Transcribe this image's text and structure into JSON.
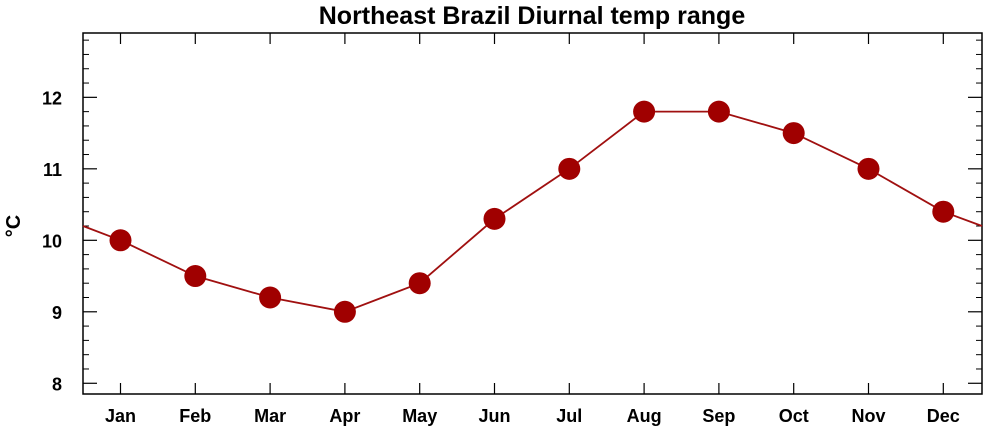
{
  "chart_data": {
    "type": "line",
    "title": "Northeast Brazil Diurnal temp range",
    "xlabel": "",
    "ylabel": "°C",
    "categories": [
      "Jan",
      "Feb",
      "Mar",
      "Apr",
      "May",
      "Jun",
      "Jul",
      "Aug",
      "Sep",
      "Oct",
      "Nov",
      "Dec"
    ],
    "series": [
      {
        "values": [
          10.0,
          9.5,
          9.2,
          9.0,
          9.4,
          10.3,
          11.0,
          11.8,
          11.8,
          11.5,
          11.0,
          10.4
        ]
      }
    ],
    "line_edge_values": {
      "left": 10.2,
      "right": 10.2
    },
    "ylim": [
      7.85,
      12.9
    ],
    "yticks": [
      8,
      9,
      10,
      11,
      12
    ],
    "y_minor_tick_step": 0.2,
    "grid": false,
    "line_color": "#a01010",
    "marker_color": "#a00000",
    "axis_color": "#000000"
  }
}
